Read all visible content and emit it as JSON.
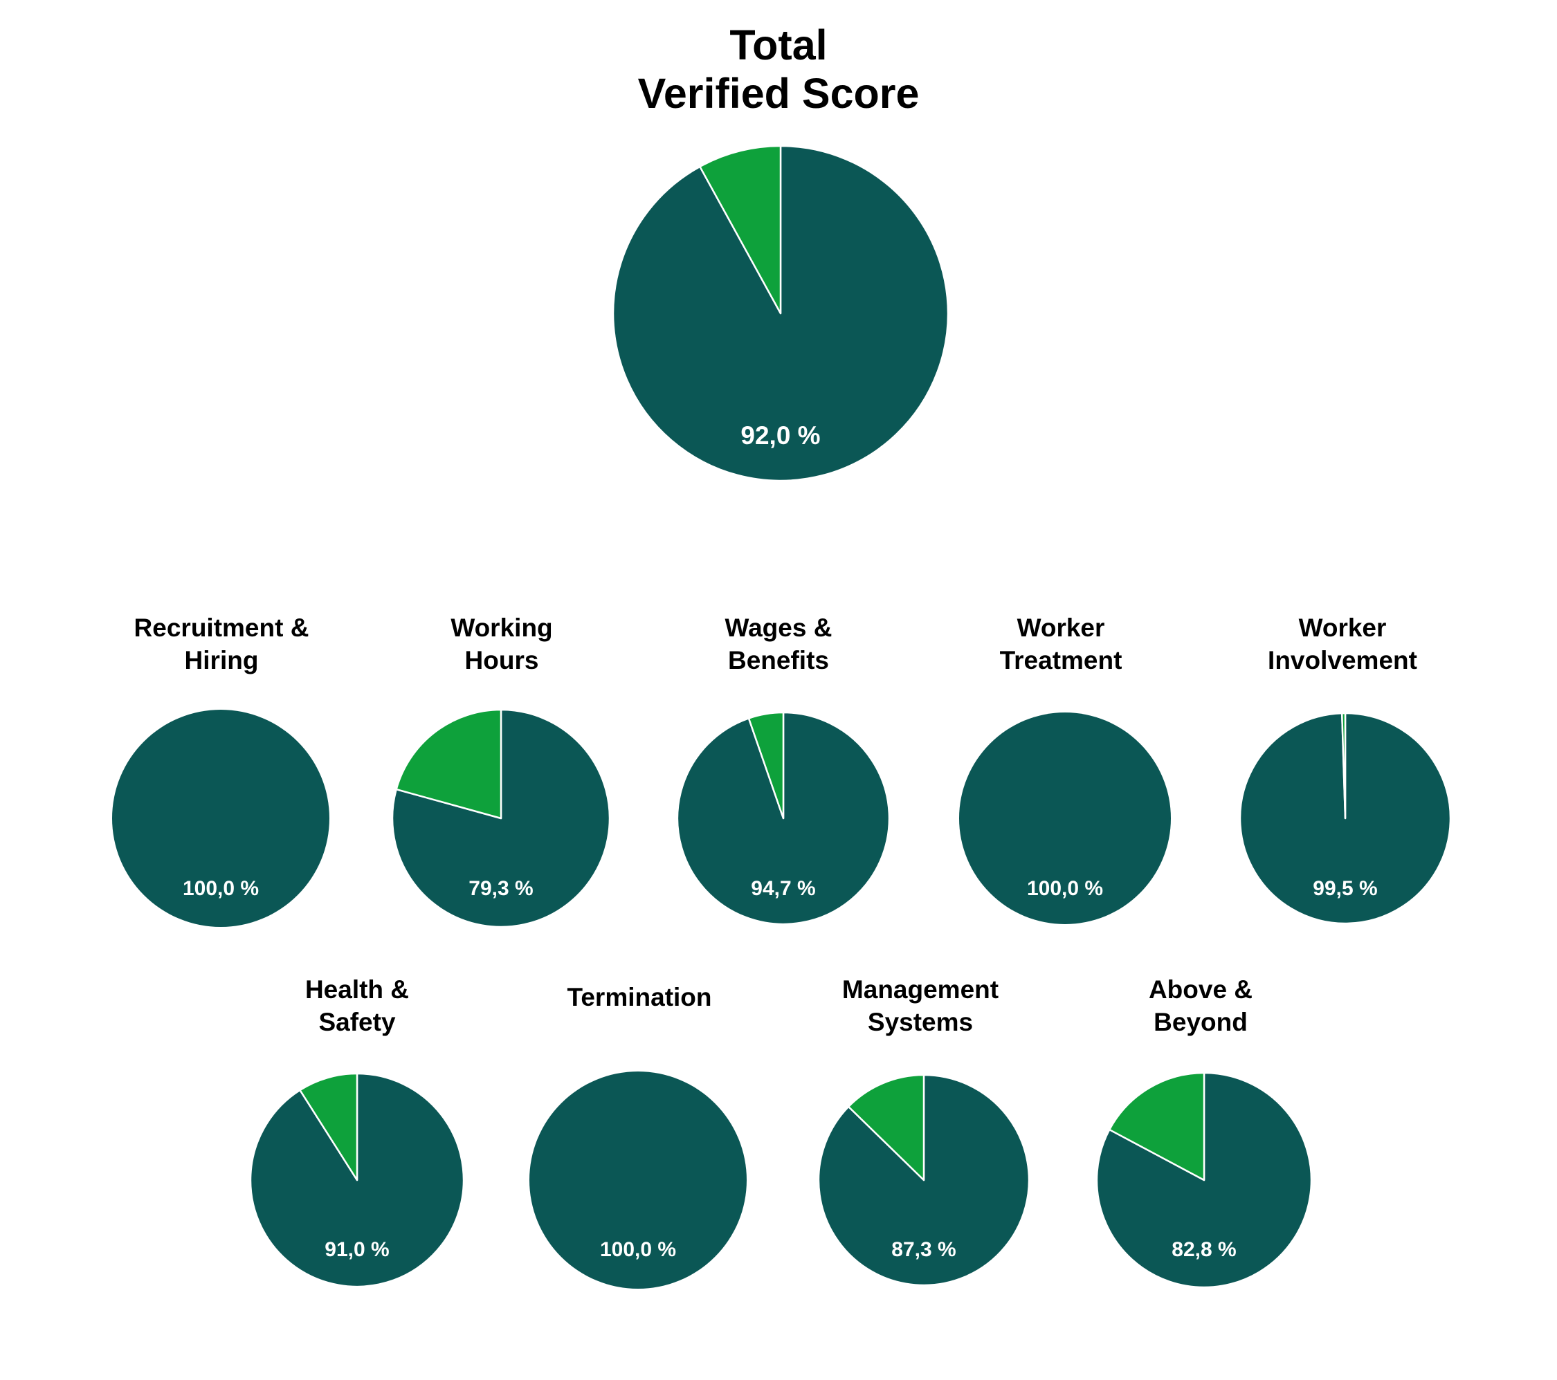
{
  "title_lines": [
    "Total",
    "Verified Score"
  ],
  "colors": {
    "score": "#0b5755",
    "remainder": "#0ea13b",
    "divider": "#ffffff"
  },
  "chart_data": [
    {
      "type": "pie",
      "title": "Total Verified Score",
      "value": 92.0,
      "label": "92,0 %"
    },
    {
      "type": "pie",
      "title_lines": [
        "Recruitment &",
        "Hiring"
      ],
      "value": 100.0,
      "label": "100,0 %"
    },
    {
      "type": "pie",
      "title_lines": [
        "Working",
        "Hours"
      ],
      "value": 79.3,
      "label": "79,3 %"
    },
    {
      "type": "pie",
      "title_lines": [
        "Wages &",
        "Benefits"
      ],
      "value": 94.7,
      "label": "94,7 %"
    },
    {
      "type": "pie",
      "title_lines": [
        "Worker",
        "Treatment"
      ],
      "value": 100.0,
      "label": "100,0 %"
    },
    {
      "type": "pie",
      "title_lines": [
        "Worker",
        "Involvement"
      ],
      "value": 99.5,
      "label": "99,5 %"
    },
    {
      "type": "pie",
      "title_lines": [
        "Health &",
        "Safety"
      ],
      "value": 91.0,
      "label": "91,0 %"
    },
    {
      "type": "pie",
      "title_lines": [
        "Termination"
      ],
      "value": 100.0,
      "label": "100,0 %"
    },
    {
      "type": "pie",
      "title_lines": [
        "Management",
        "Systems"
      ],
      "value": 87.3,
      "label": "87,3 %"
    },
    {
      "type": "pie",
      "title_lines": [
        "Above &",
        "Beyond"
      ],
      "value": 82.8,
      "label": "82,8 %"
    }
  ]
}
